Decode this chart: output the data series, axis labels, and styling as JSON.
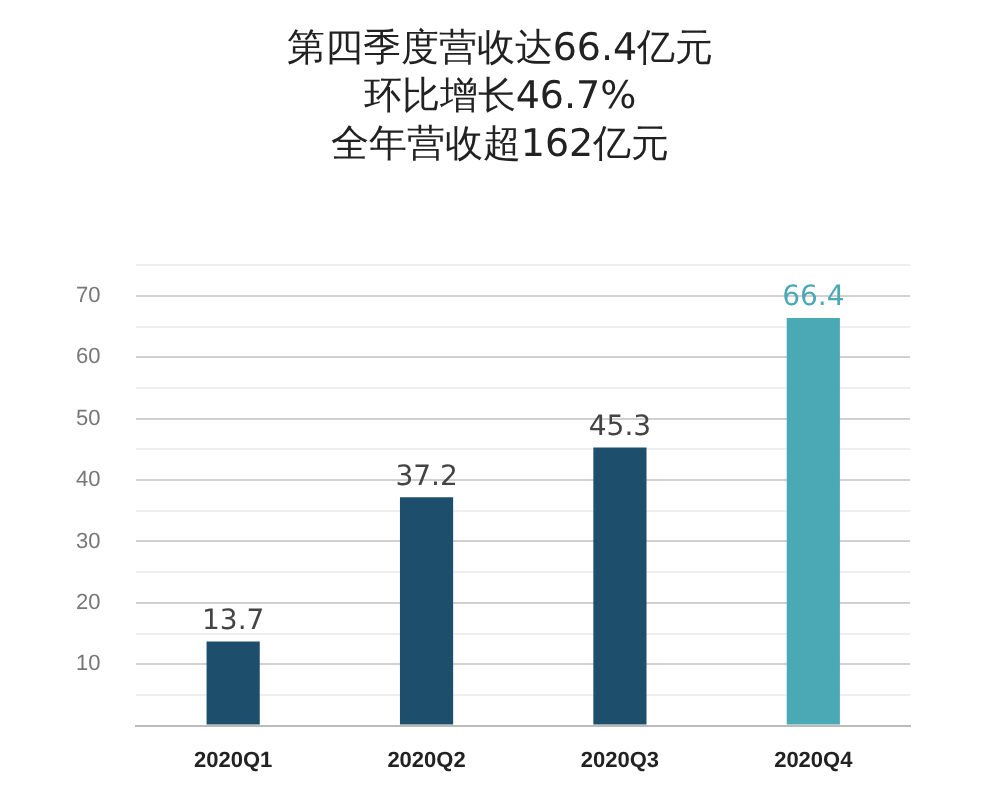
{
  "chart_data": {
    "type": "bar",
    "title": "第四季度营收达66.4亿元",
    "subtitle": "环比增长46.7%",
    "annotations": [
      "全年营收超162亿元"
    ],
    "categories": [
      "2020Q1",
      "2020Q2",
      "2020Q3",
      "2020Q4"
    ],
    "values": [
      13.7,
      37.2,
      45.3,
      66.4
    ],
    "colors": [
      "#1d4e6b",
      "#1d4e6b",
      "#1d4e6b",
      "#4aa9b5"
    ],
    "ylim": [
      0,
      75
    ],
    "yticks": [
      {
        "value": 0,
        "label": null
      },
      {
        "value": 5,
        "label": null
      },
      10,
      {
        "value": 15,
        "label": null
      },
      20,
      {
        "value": 25,
        "label": null
      },
      30,
      {
        "value": 35,
        "label": null
      },
      40,
      {
        "value": 45,
        "label": null
      },
      50,
      {
        "value": 55,
        "label": null
      },
      60,
      {
        "value": 65,
        "label": null
      },
      70,
      {
        "value": 75,
        "label": null
      }
    ],
    "grid": "y",
    "data_labels": true,
    "legend": false
  }
}
